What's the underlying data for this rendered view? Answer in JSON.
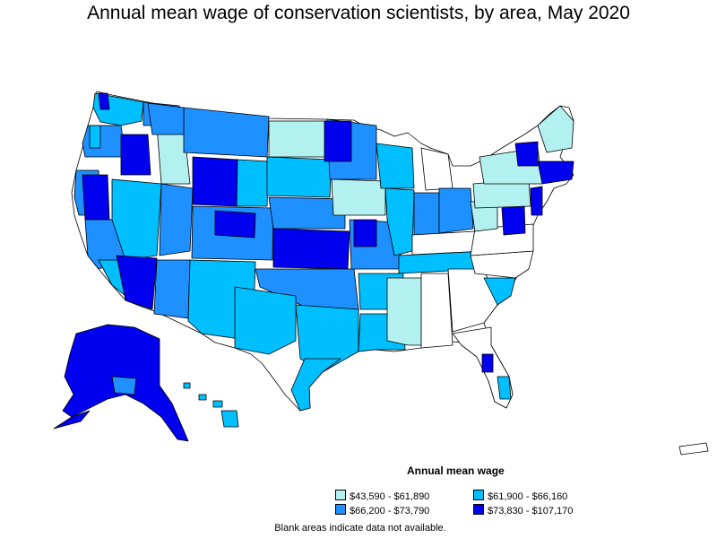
{
  "title": "Annual mean wage of conservation scientists, by area, May 2020",
  "legend": {
    "title": "Annual mean wage",
    "items": [
      {
        "label": "$43,590 - $61,890",
        "color": "#b3f0f0"
      },
      {
        "label": "$61,900 - $66,160",
        "color": "#00bfff"
      },
      {
        "label": "$66,200 - $73,790",
        "color": "#1e90ff"
      },
      {
        "label": "$73,830 - $107,170",
        "color": "#0000ee"
      }
    ]
  },
  "footnote": "Blank areas indicate data not available.",
  "colors": {
    "background": "#ffffff",
    "border": "#000000",
    "no_data": "#ffffff",
    "tier1": "#b3f0f0",
    "tier2": "#00bfff",
    "tier3": "#1e90ff",
    "tier4": "#0000ee"
  },
  "map_data": {
    "type": "choropleth",
    "region": "United States (incl. Alaska, Hawaii, Puerto Rico)",
    "unit": "areas",
    "bins": [
      "$43,590 - $61,890",
      "$61,900 - $66,160",
      "$66,200 - $73,790",
      "$73,830 - $107,170"
    ]
  }
}
